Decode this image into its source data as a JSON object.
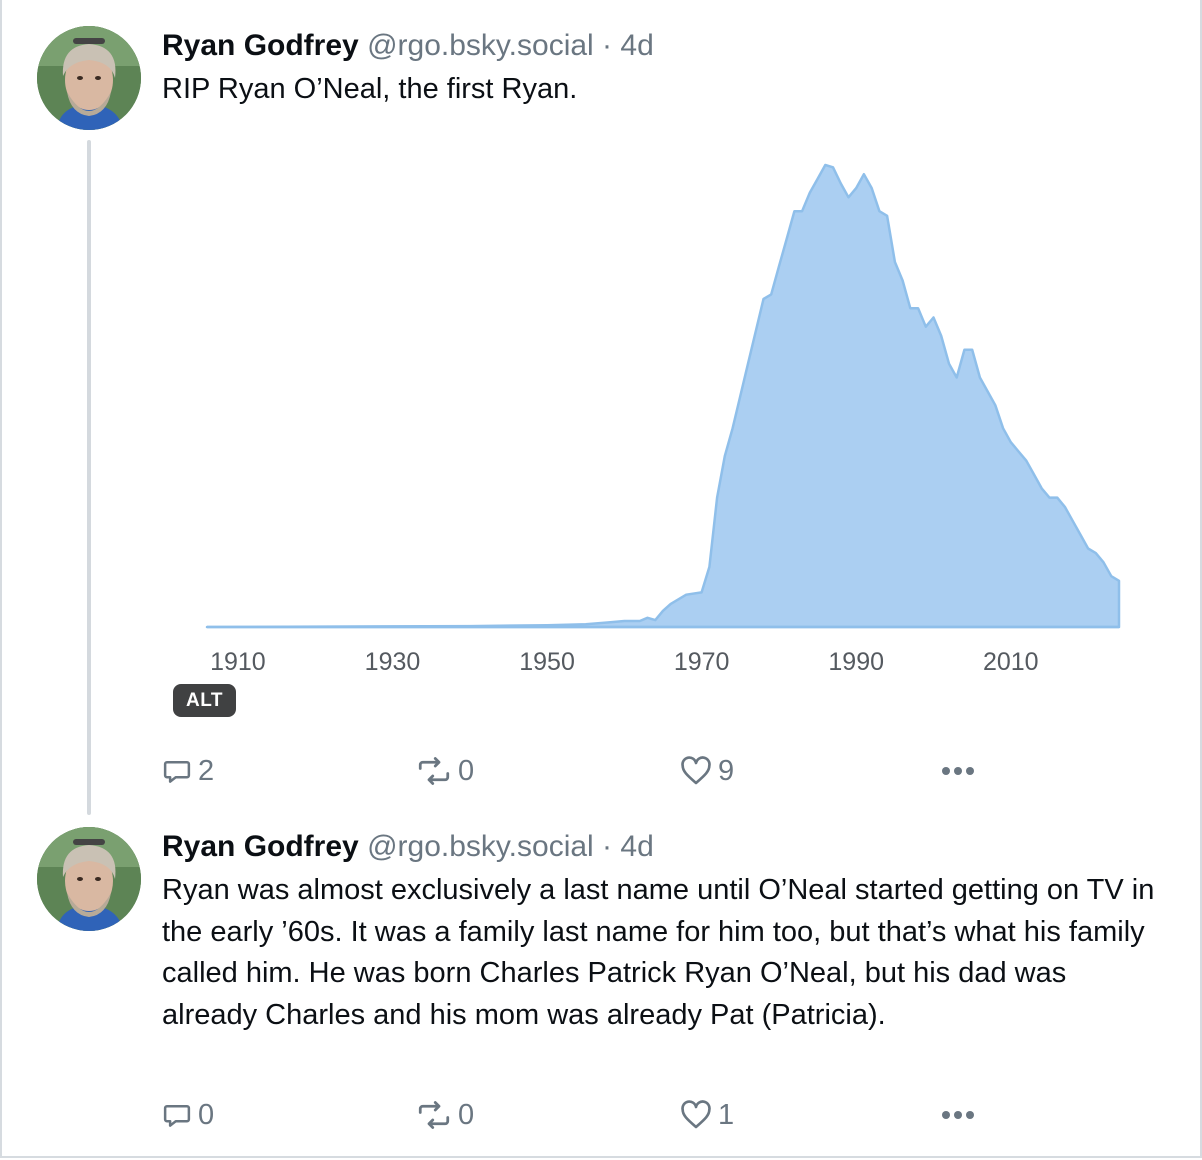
{
  "posts": [
    {
      "author": "Ryan Godfrey",
      "handle": "@rgo.bsky.social",
      "separator": "·",
      "time": "4d",
      "text": "RIP Ryan O’Neal, the first Ryan.",
      "alt_badge": "ALT",
      "replies": "2",
      "reposts": "0",
      "likes": "9"
    },
    {
      "author": "Ryan Godfrey",
      "handle": "@rgo.bsky.social",
      "separator": "·",
      "time": "4d",
      "text": "Ryan was almost exclusively a last name until O’Neal started getting on TV in the early ’60s. It was a family last name for him too, but that’s what his family called him. He was born Charles Patrick Ryan O’Neal, but his dad was already Charles and his mom was already Pat (Patricia).",
      "replies": "0",
      "reposts": "0",
      "likes": "1"
    }
  ],
  "icons": {
    "reply": "speech-bubble-icon",
    "repost": "repost-arrows-icon",
    "like": "heart-outline-icon",
    "more": "ellipsis-icon"
  },
  "colors": {
    "fill": "#abcff2",
    "stroke": "#8fbfea",
    "muted": "#6a7681",
    "alt_bg": "#404142"
  },
  "chart_data": {
    "type": "area",
    "xlabel": "",
    "ylabel": "",
    "xlim": [
      1906,
      2024
    ],
    "ylim": [
      0,
      100
    ],
    "x_ticks": [
      "1910",
      "1930",
      "1950",
      "1970",
      "1990",
      "2010"
    ],
    "x": [
      1906,
      1940,
      1950,
      1955,
      1958,
      1960,
      1962,
      1963,
      1964,
      1965,
      1966,
      1968,
      1970,
      1971,
      1972,
      1973,
      1974,
      1975,
      1976,
      1978,
      1979,
      1980,
      1981,
      1982,
      1983,
      1984,
      1985,
      1986,
      1987,
      1988,
      1989,
      1990,
      1991,
      1992,
      1993,
      1994,
      1995,
      1996,
      1997,
      1998,
      1999,
      2000,
      2001,
      2002,
      2003,
      2004,
      2005,
      2006,
      2007,
      2008,
      2009,
      2010,
      2011,
      2012,
      2013,
      2014,
      2015,
      2016,
      2017,
      2018,
      2019,
      2020,
      2021,
      2022,
      2023,
      2024
    ],
    "y": [
      0,
      0.2,
      0.4,
      0.6,
      1,
      1.3,
      1.3,
      2,
      1.5,
      3.5,
      5,
      7,
      7.5,
      13,
      28,
      37,
      43,
      50,
      57,
      71,
      72,
      78,
      84,
      90,
      90,
      94,
      97,
      100,
      99.5,
      96,
      93,
      95,
      98,
      95,
      90,
      89,
      79,
      75,
      69,
      69,
      65,
      67,
      63,
      57,
      54,
      60,
      60,
      54,
      51,
      48,
      43,
      40,
      38,
      36,
      33,
      30,
      28,
      28,
      26,
      23,
      20,
      17,
      16,
      14,
      11,
      10
    ]
  }
}
